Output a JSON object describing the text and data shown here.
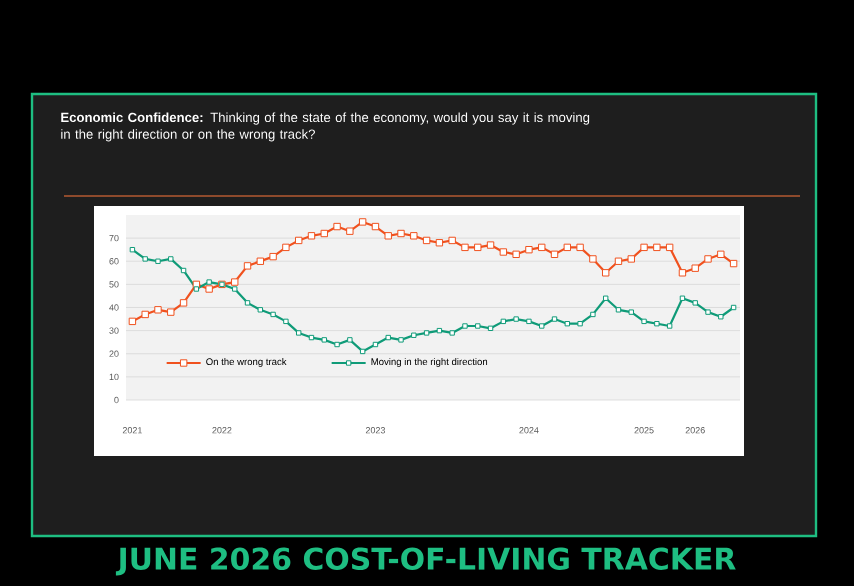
{
  "chart_data": {
    "type": "line",
    "title": "**Economic Confidence:** Thinking of the state of the economy, would you say it is moving in the right direction or on the wrong track?",
    "categories": [
      "2021",
      null,
      null,
      null,
      null,
      null,
      null,
      "2022",
      null,
      null,
      null,
      null,
      null,
      null,
      null,
      null,
      null,
      null,
      null,
      "2023",
      null,
      null,
      null,
      null,
      null,
      null,
      null,
      null,
      null,
      null,
      null,
      "2024",
      null,
      null,
      null,
      null,
      null,
      null,
      null,
      null,
      "2025",
      null,
      null,
      null,
      "2026",
      null,
      null,
      null
    ],
    "series": [
      {
        "name": "On the wrong track",
        "color": "#f0511e",
        "values": [
          34,
          37,
          39,
          38,
          42,
          50,
          48,
          50,
          51,
          58,
          60,
          62,
          66,
          69,
          71,
          72,
          75,
          73,
          77,
          75,
          71,
          72,
          71,
          69,
          68,
          69,
          66,
          66,
          67,
          64,
          63,
          65,
          66,
          63,
          66,
          66,
          61,
          55,
          60,
          61,
          66,
          66,
          66,
          55,
          57,
          61,
          63,
          59
        ]
      },
      {
        "name": "Moving in the right direction",
        "color": "#0f9b78",
        "values": [
          65,
          61,
          60,
          61,
          56,
          48,
          51,
          50,
          48,
          42,
          39,
          37,
          34,
          29,
          27,
          26,
          24,
          26,
          21,
          24,
          27,
          26,
          28,
          29,
          30,
          29,
          32,
          32,
          31,
          34,
          35,
          34,
          32,
          35,
          33,
          33,
          37,
          44,
          39,
          38,
          34,
          33,
          32,
          44,
          42,
          38,
          36,
          40
        ]
      }
    ],
    "ylim": [
      0,
      80
    ],
    "yticks": [
      0,
      10,
      20,
      30,
      40,
      50,
      60,
      70
    ],
    "grid": "y",
    "legend": "bottom",
    "marker": "square",
    "line_style": "solid",
    "annotations": [
      "JUNE 2026 COST-OF-LIVING TRACKER"
    ]
  }
}
